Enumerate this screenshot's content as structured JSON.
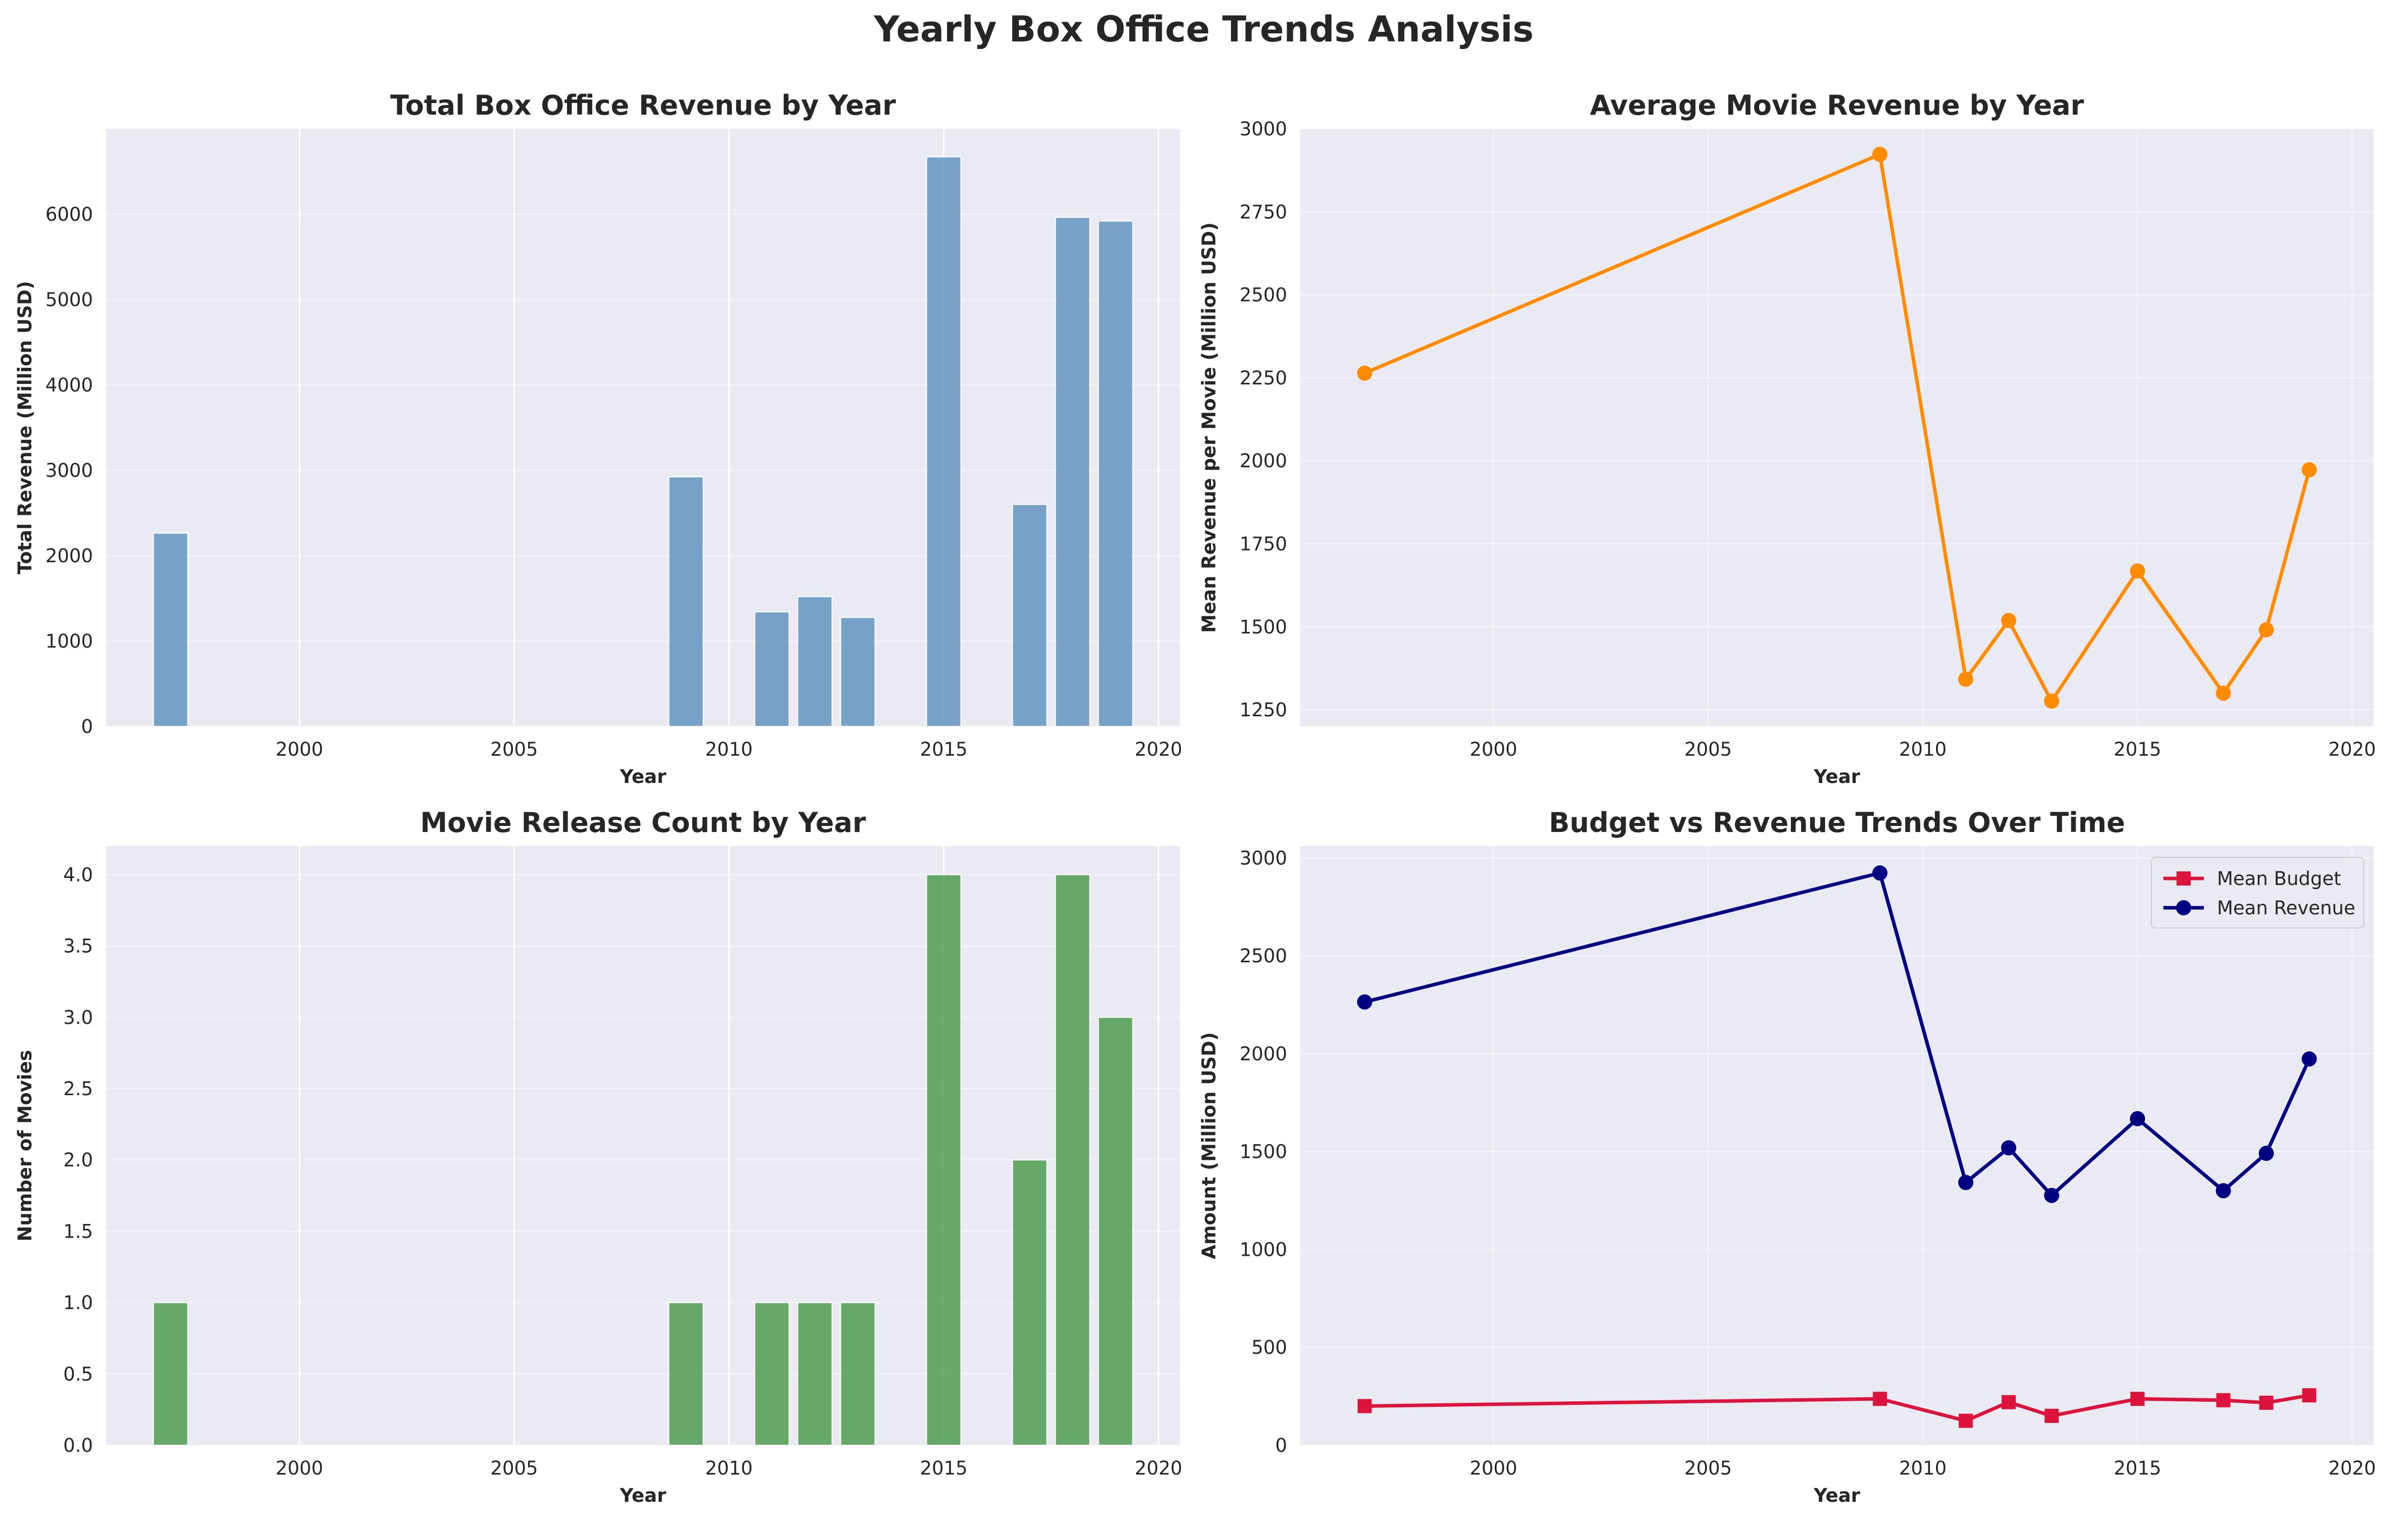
{
  "figure": {
    "title": "Yearly Box Office Trends Analysis"
  },
  "chart_data": [
    {
      "id": "p1",
      "type": "bar",
      "title": "Total Box Office Revenue by Year",
      "xlabel": "Year",
      "ylabel": "Total Revenue (Million USD)",
      "xlim": [
        1995.5,
        2020.5
      ],
      "ylim": [
        0,
        7000
      ],
      "xticks": [
        2000,
        2005,
        2010,
        2015,
        2020
      ],
      "yticks": [
        0,
        1000,
        2000,
        3000,
        4000,
        5000,
        6000
      ],
      "grid": true,
      "bar_width": 0.8,
      "color": "#4682B4",
      "x": [
        1997,
        2009,
        2011,
        2012,
        2013,
        2015,
        2017,
        2018,
        2019
      ],
      "values": [
        2264,
        2923,
        1342,
        1519,
        1276,
        6671,
        2600,
        5962,
        5920
      ]
    },
    {
      "id": "p2",
      "type": "line",
      "title": "Average Movie Revenue by Year",
      "xlabel": "Year",
      "ylabel": "Mean Revenue per Movie (Million USD)",
      "xlim": [
        1995.5,
        2020.5
      ],
      "ylim": [
        1200,
        3000
      ],
      "xticks": [
        2000,
        2005,
        2010,
        2015,
        2020
      ],
      "yticks": [
        1250,
        1500,
        1750,
        2000,
        2250,
        2500,
        2750,
        3000
      ],
      "grid": true,
      "series": [
        {
          "color": "#FF8C00",
          "marker": "circle",
          "x": [
            1997,
            2009,
            2011,
            2012,
            2013,
            2015,
            2017,
            2018,
            2019
          ],
          "values": [
            2264,
            2923,
            1342,
            1519,
            1276,
            1668,
            1300,
            1491,
            1973
          ]
        }
      ]
    },
    {
      "id": "p3",
      "type": "bar",
      "title": "Movie Release Count by Year",
      "xlabel": "Year",
      "ylabel": "Number of Movies",
      "xlim": [
        1995.5,
        2020.5
      ],
      "ylim": [
        0,
        4.2
      ],
      "xticks": [
        2000,
        2005,
        2010,
        2015,
        2020
      ],
      "yticks": [
        0,
        0.5,
        1.0,
        1.5,
        2.0,
        2.5,
        3.0,
        3.5,
        4.0
      ],
      "ytick_decimals": 1,
      "grid": true,
      "bar_width": 0.8,
      "color": "#2E8B2E",
      "x": [
        1997,
        2009,
        2011,
        2012,
        2013,
        2015,
        2017,
        2018,
        2019
      ],
      "values": [
        1,
        1,
        1,
        1,
        1,
        4,
        2,
        4,
        3
      ]
    },
    {
      "id": "p4",
      "type": "line",
      "title": "Budget vs Revenue Trends Over Time",
      "xlabel": "Year",
      "ylabel": "Amount (Million USD)",
      "xlim": [
        1995.5,
        2020.5
      ],
      "ylim": [
        0,
        3060
      ],
      "xticks": [
        2000,
        2005,
        2010,
        2015,
        2020
      ],
      "yticks": [
        0,
        500,
        1000,
        1500,
        2000,
        2500,
        3000
      ],
      "grid": true,
      "legend": "top-right",
      "series": [
        {
          "name": "Mean Budget",
          "color": "#DC143C",
          "marker": "square",
          "x": [
            1997,
            2009,
            2011,
            2012,
            2013,
            2015,
            2017,
            2018,
            2019
          ],
          "values": [
            200,
            237,
            125,
            220,
            150,
            237,
            230,
            217,
            255
          ]
        },
        {
          "name": "Mean Revenue",
          "color": "#000080",
          "marker": "circle",
          "x": [
            1997,
            2009,
            2011,
            2012,
            2013,
            2015,
            2017,
            2018,
            2019
          ],
          "values": [
            2264,
            2923,
            1342,
            1519,
            1276,
            1668,
            1300,
            1491,
            1973
          ]
        }
      ]
    }
  ]
}
